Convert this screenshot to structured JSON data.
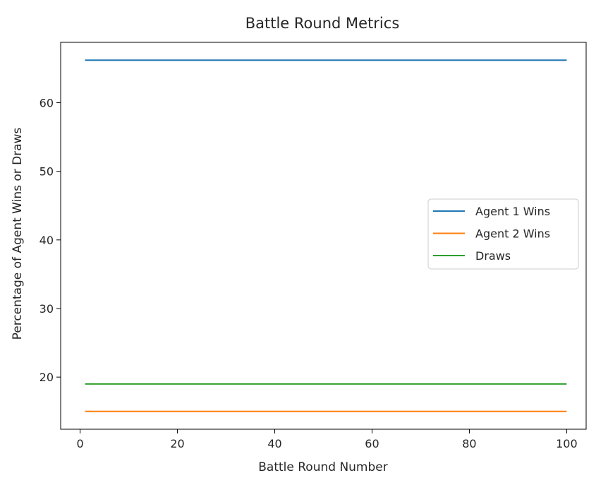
{
  "chart_data": {
    "type": "line",
    "title": "Battle Round Metrics",
    "xlabel": "Battle Round Number",
    "ylabel": "Percentage of Agent Wins or Draws",
    "xlim": [
      -4,
      104
    ],
    "ylim": [
      12.4,
      68.8
    ],
    "xticks": [
      0,
      20,
      40,
      60,
      80,
      100
    ],
    "yticks": [
      20,
      30,
      40,
      50,
      60
    ],
    "grid": false,
    "legend": "center-right",
    "series": [
      {
        "name": "Agent 1 Wins",
        "color": "#1f77b4",
        "x": [
          1,
          100
        ],
        "y": [
          66.2,
          66.2
        ]
      },
      {
        "name": "Agent 2 Wins",
        "color": "#ff7f0e",
        "x": [
          1,
          100
        ],
        "y": [
          15.0,
          15.0
        ]
      },
      {
        "name": "Draws",
        "color": "#2ca02c",
        "x": [
          1,
          100
        ],
        "y": [
          19.0,
          19.0
        ]
      }
    ]
  }
}
